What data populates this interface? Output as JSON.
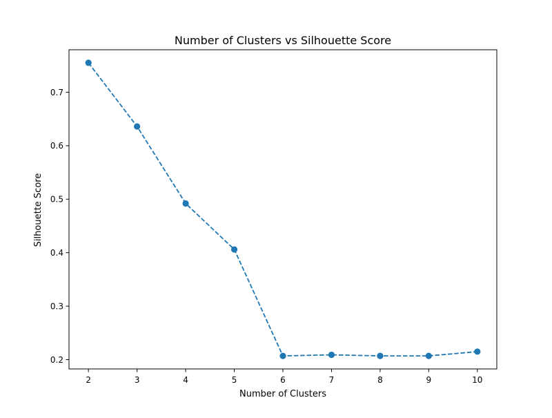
{
  "chart_data": {
    "type": "line",
    "title": "Number of Clusters vs Silhouette Score",
    "xlabel": "Number of Clusters",
    "ylabel": "Silhouette Score",
    "x": [
      2,
      3,
      4,
      5,
      6,
      7,
      8,
      9,
      10
    ],
    "series": [
      {
        "values": [
          0.755,
          0.636,
          0.492,
          0.406,
          0.207,
          0.209,
          0.207,
          0.207,
          0.215
        ]
      }
    ],
    "xticks": [
      "2",
      "3",
      "4",
      "5",
      "6",
      "7",
      "8",
      "9",
      "10"
    ],
    "yticks": [
      "0.2",
      "0.3",
      "0.4",
      "0.5",
      "0.6",
      "0.7"
    ],
    "xlim": [
      1.6,
      10.4
    ],
    "ylim": [
      0.1826,
      0.7794
    ],
    "line_style": "dashed",
    "marker": "circle",
    "grid": false,
    "legend": false,
    "colors": {
      "series": "#1f77b4",
      "axes": "#000000",
      "background": "#ffffff"
    }
  }
}
